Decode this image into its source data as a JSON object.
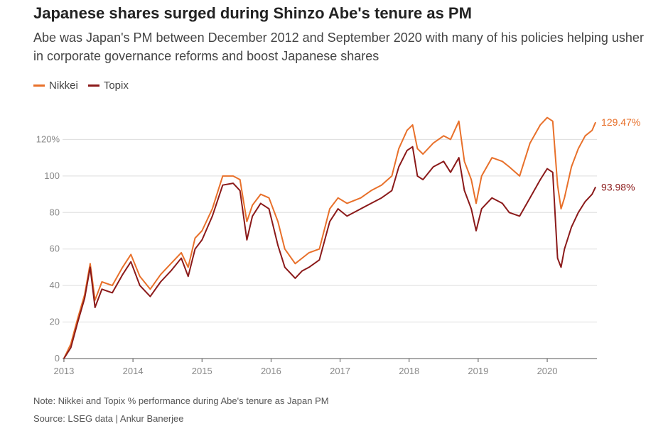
{
  "header": {
    "title": "Japanese shares surged during Shinzo Abe's tenure as PM",
    "subtitle": "Abe was Japan's PM between December 2012 and September 2020 with many of his policies helping usher in corporate governance reforms and boost Japanese shares"
  },
  "colors": {
    "nikkei": "#e8702a",
    "topix": "#8b1a1a",
    "grid": "#dddddd",
    "axis": "#555555"
  },
  "chart_data": {
    "type": "line",
    "title": "Japanese shares surged during Shinzo Abe's tenure as PM",
    "xlabel": "",
    "ylabel": "",
    "xlim": [
      2012.98,
      2020.72
    ],
    "ylim": [
      0,
      140
    ],
    "y_ticks": [
      0,
      20,
      40,
      60,
      80,
      100,
      120
    ],
    "y_tick_labels": [
      "0",
      "20",
      "40",
      "60",
      "80",
      "100",
      "120%"
    ],
    "x_ticks": [
      2013,
      2014,
      2015,
      2016,
      2017,
      2018,
      2019,
      2020
    ],
    "x_tick_labels": [
      "2013",
      "2014",
      "2015",
      "2016",
      "2017",
      "2018",
      "2019",
      "2020"
    ],
    "grid": true,
    "legend": "top-left",
    "series": [
      {
        "name": "Nikkei",
        "end_label": "129.47%",
        "x": [
          2013.0,
          2013.1,
          2013.2,
          2013.3,
          2013.38,
          2013.45,
          2013.55,
          2013.7,
          2013.85,
          2013.97,
          2014.1,
          2014.25,
          2014.4,
          2014.55,
          2014.7,
          2014.8,
          2014.9,
          2015.0,
          2015.15,
          2015.3,
          2015.45,
          2015.55,
          2015.65,
          2015.73,
          2015.85,
          2015.97,
          2016.1,
          2016.2,
          2016.35,
          2016.45,
          2016.55,
          2016.7,
          2016.85,
          2016.97,
          2017.1,
          2017.3,
          2017.45,
          2017.6,
          2017.75,
          2017.85,
          2017.97,
          2018.05,
          2018.12,
          2018.2,
          2018.35,
          2018.5,
          2018.6,
          2018.72,
          2018.8,
          2018.9,
          2018.97,
          2019.05,
          2019.2,
          2019.35,
          2019.45,
          2019.6,
          2019.75,
          2019.9,
          2020.0,
          2020.08,
          2020.15,
          2020.2,
          2020.25,
          2020.35,
          2020.45,
          2020.55,
          2020.65,
          2020.7
        ],
        "y": [
          0,
          8,
          22,
          35,
          52,
          32,
          42,
          40,
          50,
          57,
          45,
          38,
          46,
          52,
          58,
          50,
          66,
          70,
          82,
          100,
          100,
          98,
          75,
          84,
          90,
          88,
          75,
          60,
          52,
          55,
          58,
          60,
          82,
          88,
          85,
          88,
          92,
          95,
          100,
          115,
          125,
          128,
          115,
          112,
          118,
          122,
          120,
          130,
          108,
          98,
          85,
          100,
          110,
          108,
          105,
          100,
          118,
          128,
          132,
          130,
          95,
          82,
          88,
          105,
          115,
          122,
          125,
          129.47
        ]
      },
      {
        "name": "Topix",
        "end_label": "93.98%",
        "x": [
          2013.0,
          2013.1,
          2013.2,
          2013.3,
          2013.38,
          2013.45,
          2013.55,
          2013.7,
          2013.85,
          2013.97,
          2014.1,
          2014.25,
          2014.4,
          2014.55,
          2014.7,
          2014.8,
          2014.9,
          2015.0,
          2015.15,
          2015.3,
          2015.45,
          2015.55,
          2015.65,
          2015.73,
          2015.85,
          2015.97,
          2016.1,
          2016.2,
          2016.35,
          2016.45,
          2016.55,
          2016.7,
          2016.85,
          2016.97,
          2017.1,
          2017.3,
          2017.45,
          2017.6,
          2017.75,
          2017.85,
          2017.97,
          2018.05,
          2018.12,
          2018.2,
          2018.35,
          2018.5,
          2018.6,
          2018.72,
          2018.8,
          2018.9,
          2018.97,
          2019.05,
          2019.2,
          2019.35,
          2019.45,
          2019.6,
          2019.75,
          2019.9,
          2020.0,
          2020.08,
          2020.15,
          2020.2,
          2020.25,
          2020.35,
          2020.45,
          2020.55,
          2020.65,
          2020.7
        ],
        "y": [
          0,
          6,
          20,
          33,
          50,
          28,
          38,
          36,
          46,
          53,
          40,
          34,
          42,
          48,
          55,
          45,
          60,
          65,
          78,
          95,
          96,
          92,
          65,
          78,
          85,
          82,
          62,
          50,
          44,
          48,
          50,
          54,
          75,
          82,
          78,
          82,
          85,
          88,
          92,
          105,
          114,
          116,
          100,
          98,
          105,
          108,
          102,
          110,
          92,
          82,
          70,
          82,
          88,
          85,
          80,
          78,
          88,
          98,
          104,
          102,
          55,
          50,
          60,
          72,
          80,
          86,
          90,
          93.98
        ]
      }
    ]
  },
  "footer": {
    "note": "Note: Nikkei and Topix % performance during Abe's tenure as Japan PM",
    "source": "Source: LSEG data  | Ankur Banerjee"
  }
}
